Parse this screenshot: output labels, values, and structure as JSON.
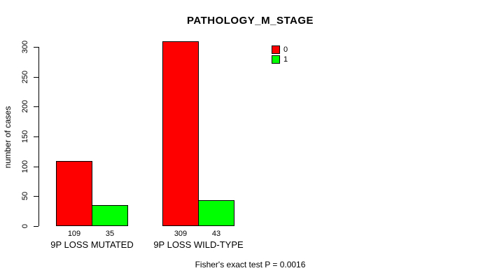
{
  "title": "PATHOLOGY_M_STAGE",
  "colors": {
    "series0": "#FF0000",
    "series1": "#00FF00",
    "axis": "#000000",
    "background": "#FFFFFF"
  },
  "chart_data": {
    "type": "bar",
    "title": "PATHOLOGY_M_STAGE",
    "xlabel": "",
    "ylabel": "number of cases",
    "categories": [
      "9P LOSS MUTATED",
      "9P LOSS WILD-TYPE"
    ],
    "series": [
      {
        "name": "0",
        "color": "#FF0000",
        "values": [
          109,
          309
        ]
      },
      {
        "name": "1",
        "color": "#00FF00",
        "values": [
          35,
          43
        ]
      }
    ],
    "bar_value_labels": [
      [
        109,
        35
      ],
      [
        309,
        43
      ]
    ],
    "yticks": [
      0,
      50,
      100,
      150,
      200,
      250,
      300
    ],
    "ylim": [
      0,
      309
    ],
    "grid": false,
    "legend_position": "top-right",
    "annotation": "Fisher's exact test P = 0.0016"
  }
}
